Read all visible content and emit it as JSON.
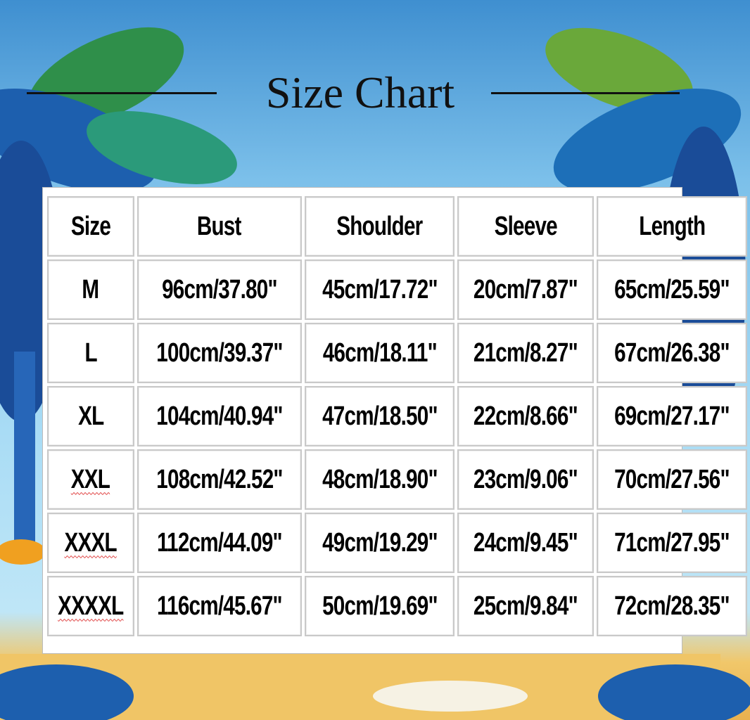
{
  "title": "Size Chart",
  "table": {
    "headers": [
      "Size",
      "Bust",
      "Shoulder",
      "Sleeve",
      "Length"
    ],
    "rows": [
      [
        "M",
        "96cm/37.80\"",
        "45cm/17.72\"",
        "20cm/7.87\"",
        "65cm/25.59\""
      ],
      [
        "L",
        "100cm/39.37\"",
        "46cm/18.11\"",
        "21cm/8.27\"",
        "67cm/26.38\""
      ],
      [
        "XL",
        "104cm/40.94\"",
        "47cm/18.50\"",
        "22cm/8.66\"",
        "69cm/27.17\""
      ],
      [
        "XXL",
        "108cm/42.52\"",
        "48cm/18.90\"",
        "23cm/9.06\"",
        "70cm/27.56\""
      ],
      [
        "XXXL",
        "112cm/44.09\"",
        "49cm/19.29\"",
        "24cm/9.45\"",
        "71cm/27.95\""
      ],
      [
        "XXXXL",
        "116cm/45.67\"",
        "50cm/19.69\"",
        "25cm/9.84\"",
        "72cm/28.35\""
      ]
    ]
  },
  "colors": {
    "sky": "#7cc0ea",
    "palm_dark": "#1d4f9e",
    "palm_green": "#3a9a4a",
    "sand": "#f1c76a"
  }
}
